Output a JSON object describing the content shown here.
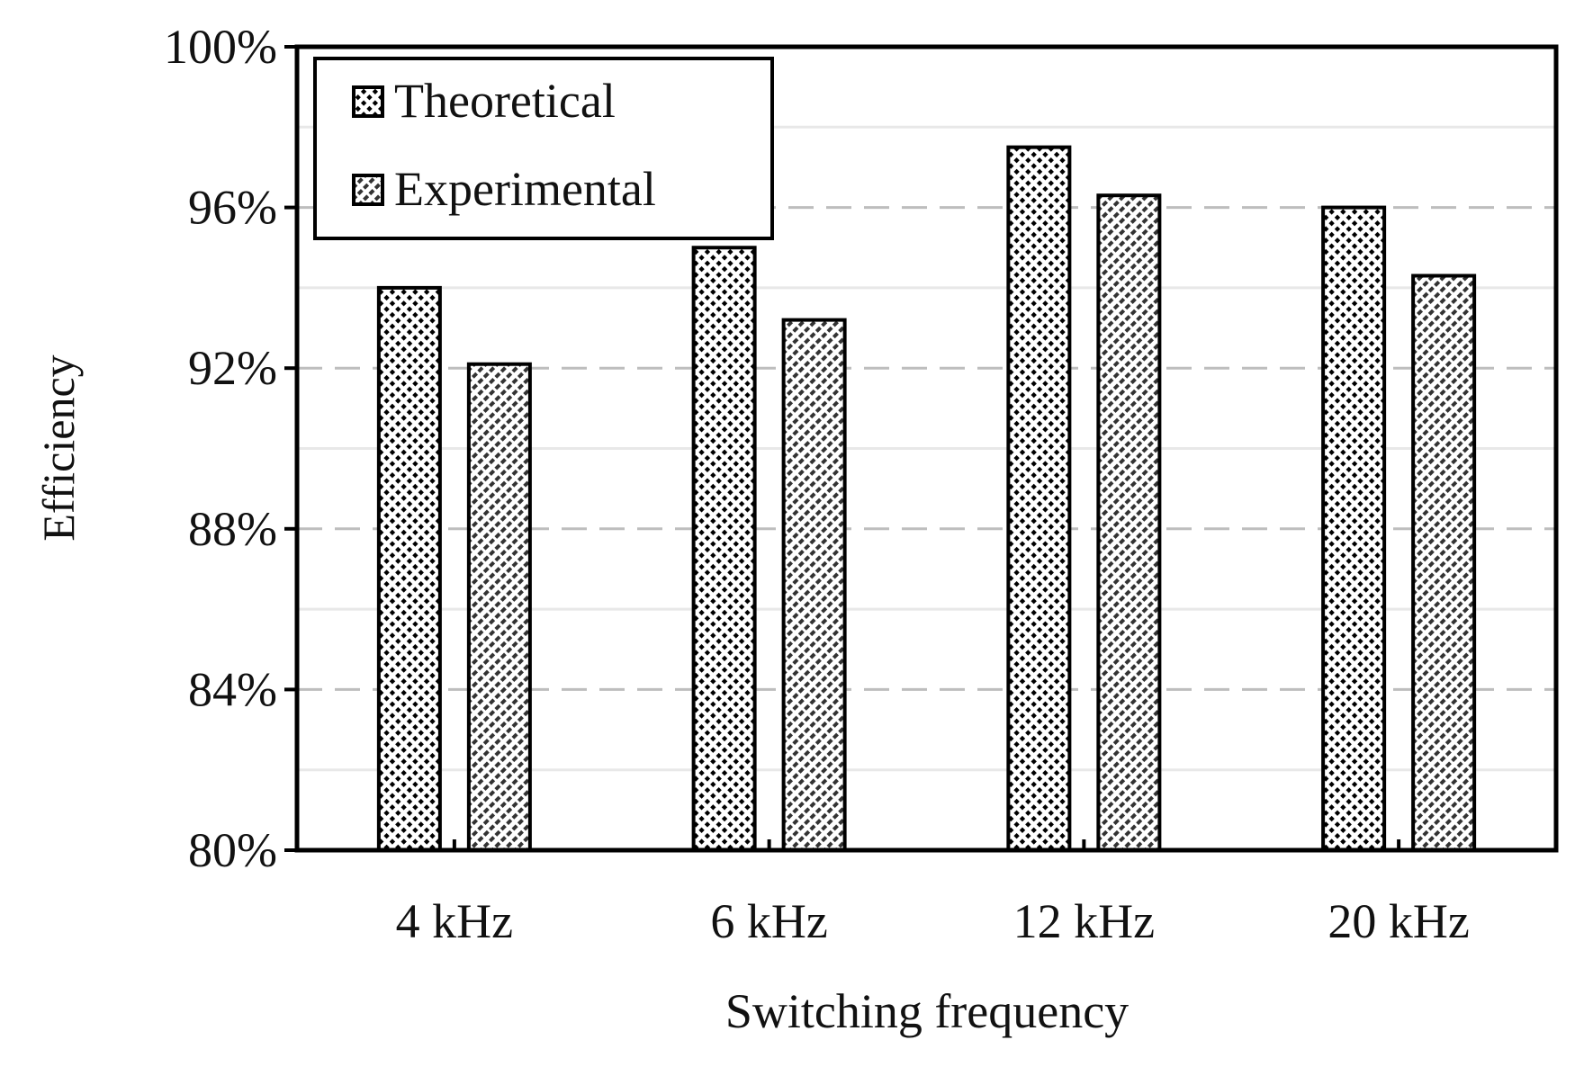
{
  "chart_data": {
    "type": "bar",
    "categories": [
      "4 kHz",
      "6 kHz",
      "12 kHz",
      "20 kHz"
    ],
    "series": [
      {
        "name": "Theoretical",
        "values": [
          94.0,
          95.0,
          97.5,
          96.0
        ]
      },
      {
        "name": "Experimental",
        "values": [
          92.1,
          93.2,
          96.3,
          94.3
        ]
      }
    ],
    "yticks": [
      "80%",
      "84%",
      "88%",
      "92%",
      "96%",
      "100%"
    ],
    "ylim": [
      80,
      100
    ],
    "ylabel": "Efficiency",
    "xlabel": "Switching frequency",
    "legend_position": "top-left",
    "colors": {
      "stroke": "#000000",
      "hatch": "#000000",
      "grid_major": "#bdbdbd",
      "grid_minor": "#e8e8e8"
    }
  }
}
